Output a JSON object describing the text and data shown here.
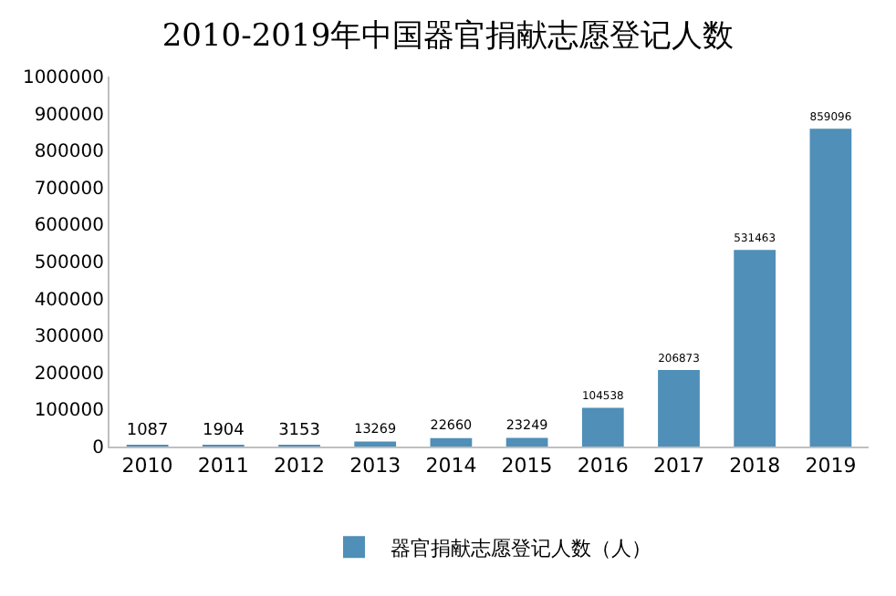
{
  "chart_data": {
    "type": "bar",
    "title": "2010-2019年中国器官捐献志愿登记人数",
    "categories": [
      "2010",
      "2011",
      "2012",
      "2013",
      "2014",
      "2015",
      "2016",
      "2017",
      "2018",
      "2019"
    ],
    "series": [
      {
        "name": "器官捐献志愿登记人数（人）",
        "color": "#4f8fb8",
        "values": [
          1087,
          1904,
          3153,
          13269,
          22660,
          23249,
          104538,
          206873,
          531463,
          859096
        ]
      }
    ],
    "ylim": [
      0,
      1000000
    ],
    "yticks": [
      0,
      100000,
      200000,
      300000,
      400000,
      500000,
      600000,
      700000,
      800000,
      900000,
      1000000
    ],
    "data_labels": true,
    "legend": "bottom",
    "grid": false
  }
}
